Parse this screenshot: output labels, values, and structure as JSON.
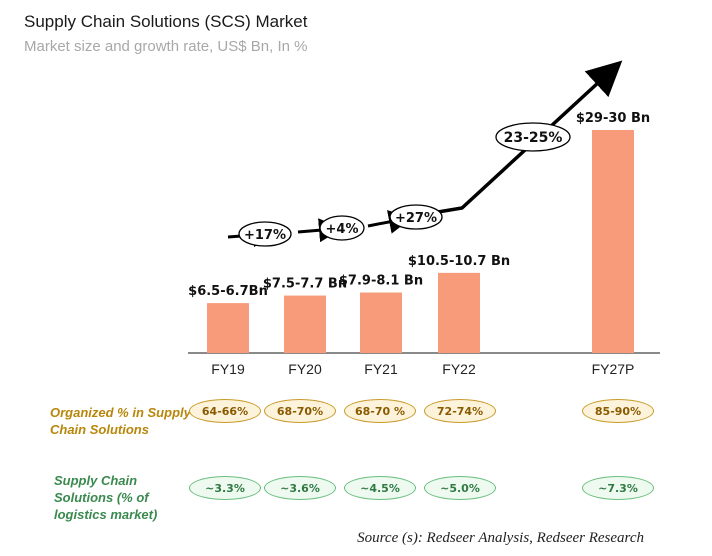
{
  "header": {
    "title": "Supply Chain Solutions (SCS) Market",
    "subtitle": "Market size and growth rate, US$ Bn, In %"
  },
  "chart_data": {
    "type": "bar",
    "title": "Supply Chain Solutions (SCS) Market",
    "subtitle": "Market size and growth rate, US$ Bn, In %",
    "categories": [
      "FY19",
      "FY20",
      "FY21",
      "FY22",
      "FY27P"
    ],
    "values": [
      6.6,
      7.6,
      8.0,
      10.6,
      29.5
    ],
    "bar_labels": [
      "$6.5-6.7Bn",
      "$7.5-7.7 Bn",
      "$7.9-8.1 Bn",
      "$10.5-10.7 Bn",
      "$29-30 Bn"
    ],
    "growth_rates": [
      "+17%",
      "+4%",
      "+27%",
      "23-25%"
    ],
    "bar_color": "#f79b7b",
    "ylim": [
      0,
      32
    ]
  },
  "rows": {
    "organized": {
      "label": "Organized % in Supply Chain Solutions",
      "values": [
        "64-66%",
        "68-70%",
        "68-70 %",
        "72-74%",
        "85-90%"
      ]
    },
    "share": {
      "label": "Supply Chain Solutions (% of logistics market)",
      "values": [
        "~3.3%",
        "~3.6%",
        "~4.5%",
        "~5.0%",
        "~7.3%"
      ]
    }
  },
  "footer": {
    "source": "Source (s): Redseer Analysis, Redseer Research"
  }
}
